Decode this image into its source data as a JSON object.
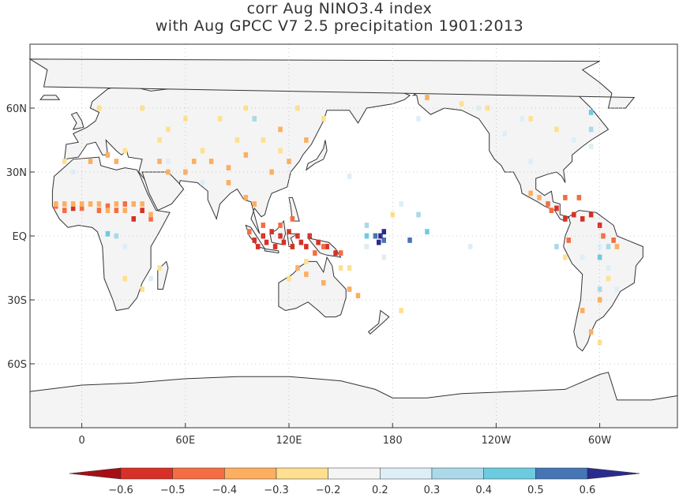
{
  "title": {
    "line1": "corr Aug NINO3.4 index",
    "line2": "with Aug GPCC V7 2.5 precipitation 1901:2013"
  },
  "map": {
    "lon_ticks": [
      "0",
      "60E",
      "120E",
      "180",
      "120W",
      "60W"
    ],
    "lat_ticks": [
      "60N",
      "30N",
      "EQ",
      "30S",
      "60S"
    ],
    "lon_range": [
      -30,
      345
    ],
    "lat_range": [
      -90,
      90
    ],
    "grid": true,
    "land_fill": "#f4f4f4",
    "coast_color": "#333333"
  },
  "colorbar": {
    "labels": [
      "−0.6",
      "−0.5",
      "−0.4",
      "−0.3",
      "−0.2",
      "0.2",
      "0.3",
      "0.4",
      "0.5",
      "0.6"
    ],
    "colors": [
      "#a50f15",
      "#d73027",
      "#f46d43",
      "#fdae61",
      "#fee090",
      "#f4f4f4",
      "#deeef7",
      "#abd9e9",
      "#6dcbe0",
      "#4575b4",
      "#2b2b8e"
    ]
  },
  "anomaly_cells": {
    "strong_negative": [
      [
        100,
        -2
      ],
      [
        102,
        -5
      ],
      [
        105,
        0
      ],
      [
        107,
        -3
      ],
      [
        110,
        2
      ],
      [
        112,
        -5
      ],
      [
        115,
        0
      ],
      [
        117,
        -3
      ],
      [
        120,
        2
      ],
      [
        122,
        -5
      ],
      [
        125,
        0
      ],
      [
        127,
        -3
      ],
      [
        130,
        -5
      ],
      [
        132,
        0
      ],
      [
        137,
        -3
      ],
      [
        142,
        -5
      ],
      [
        147,
        -8
      ],
      [
        -75,
        10
      ],
      [
        -70,
        8
      ],
      [
        -65,
        10
      ],
      [
        -60,
        5
      ],
      [
        -85,
        13
      ],
      [
        -80,
        8
      ],
      [
        30,
        8
      ],
      [
        35,
        12
      ],
      [
        -5,
        13
      ]
    ],
    "negative": [
      [
        97,
        2
      ],
      [
        105,
        5
      ],
      [
        115,
        5
      ],
      [
        122,
        8
      ],
      [
        135,
        -8
      ],
      [
        140,
        -5
      ],
      [
        150,
        -8
      ],
      [
        -90,
        15
      ],
      [
        -80,
        18
      ],
      [
        -72,
        18
      ],
      [
        -88,
        12
      ],
      [
        -58,
        0
      ],
      [
        -52,
        -2
      ],
      [
        0,
        13
      ],
      [
        10,
        12
      ],
      [
        15,
        14
      ],
      [
        20,
        12
      ],
      [
        25,
        15
      ],
      [
        -15,
        14
      ],
      [
        -10,
        12
      ],
      [
        40,
        8
      ],
      [
        -78,
        -2
      ]
    ],
    "mod_negative": [
      [
        -15,
        15
      ],
      [
        -10,
        15
      ],
      [
        -5,
        15
      ],
      [
        0,
        15
      ],
      [
        5,
        15
      ],
      [
        10,
        15
      ],
      [
        15,
        12
      ],
      [
        20,
        15
      ],
      [
        25,
        12
      ],
      [
        30,
        15
      ],
      [
        35,
        15
      ],
      [
        40,
        10
      ],
      [
        85,
        25
      ],
      [
        95,
        18
      ],
      [
        100,
        15
      ],
      [
        125,
        -15
      ],
      [
        130,
        -18
      ],
      [
        140,
        -22
      ],
      [
        155,
        -25
      ],
      [
        160,
        -28
      ],
      [
        -100,
        20
      ],
      [
        -95,
        18
      ],
      [
        -70,
        -35
      ],
      [
        -65,
        -45
      ],
      [
        -60,
        -30
      ],
      [
        -50,
        -5
      ],
      [
        60,
        30
      ],
      [
        65,
        35
      ],
      [
        75,
        35
      ],
      [
        85,
        32
      ],
      [
        95,
        38
      ],
      [
        110,
        30
      ],
      [
        120,
        35
      ],
      [
        45,
        35
      ],
      [
        50,
        30
      ],
      [
        20,
        35
      ],
      [
        15,
        38
      ],
      [
        5,
        35
      ],
      [
        100,
        55
      ],
      [
        115,
        50
      ],
      [
        130,
        45
      ],
      [
        -160,
        65
      ],
      [
        170,
        0
      ],
      [
        175,
        -2
      ]
    ],
    "light_negative": [
      [
        -10,
        35
      ],
      [
        25,
        40
      ],
      [
        45,
        45
      ],
      [
        70,
        40
      ],
      [
        90,
        45
      ],
      [
        105,
        45
      ],
      [
        115,
        40
      ],
      [
        50,
        50
      ],
      [
        60,
        55
      ],
      [
        80,
        55
      ],
      [
        95,
        60
      ],
      [
        125,
        60
      ],
      [
        140,
        55
      ],
      [
        -140,
        62
      ],
      [
        -100,
        55
      ],
      [
        -85,
        50
      ],
      [
        10,
        60
      ],
      [
        35,
        60
      ],
      [
        -175,
        -35
      ],
      [
        165,
        -5
      ],
      [
        150,
        -15
      ],
      [
        130,
        -12
      ],
      [
        120,
        -20
      ],
      [
        -125,
        60
      ],
      [
        -80,
        -10
      ],
      [
        -60,
        -50
      ],
      [
        -55,
        -20
      ],
      [
        45,
        -15
      ],
      [
        35,
        -25
      ],
      [
        25,
        -20
      ],
      [
        -180,
        10
      ],
      [
        155,
        -15
      ]
    ],
    "light_positive": [
      [
        -75,
        45
      ],
      [
        -65,
        42
      ],
      [
        -105,
        55
      ],
      [
        -115,
        48
      ],
      [
        25,
        -5
      ],
      [
        -55,
        -15
      ],
      [
        -50,
        -25
      ],
      [
        -60,
        -5
      ],
      [
        70,
        25
      ],
      [
        -130,
        60
      ],
      [
        -70,
        -10
      ],
      [
        -135,
        -5
      ],
      [
        165,
        -5
      ],
      [
        -165,
        55
      ],
      [
        -100,
        35
      ],
      [
        40,
        -20
      ],
      [
        50,
        35
      ],
      [
        -5,
        30
      ],
      [
        155,
        28
      ],
      [
        175,
        -10
      ],
      [
        -175,
        15
      ]
    ],
    "positive": [
      [
        -55,
        -5
      ],
      [
        -60,
        -25
      ],
      [
        -165,
        10
      ],
      [
        -65,
        50
      ],
      [
        20,
        0
      ],
      [
        100,
        55
      ],
      [
        -85,
        -5
      ],
      [
        165,
        5
      ]
    ],
    "mod_positive": [
      [
        165,
        0
      ],
      [
        -160,
        2
      ],
      [
        -60,
        -10
      ],
      [
        -65,
        58
      ],
      [
        15,
        1
      ]
    ],
    "strong_positive": [
      [
        170,
        0
      ],
      [
        175,
        -2
      ],
      [
        -170,
        -2
      ]
    ],
    "deep_positive": [
      [
        172,
        -3
      ],
      [
        173,
        0
      ],
      [
        175,
        2
      ]
    ]
  }
}
